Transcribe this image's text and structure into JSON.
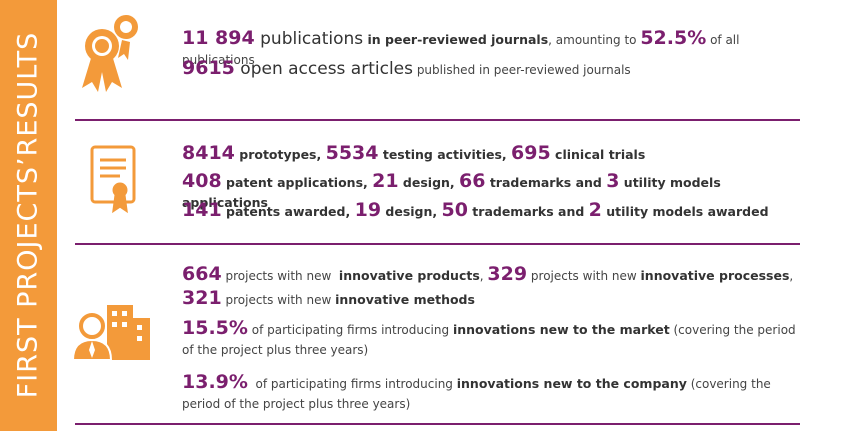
{
  "sidebar": {
    "title": "FIRST PROJECTS’RESULTS"
  },
  "sections": [
    {
      "lines": [
        [
          {
            "text": "11 894",
            "style": "number"
          },
          {
            "text": " publications",
            "style": "large"
          },
          {
            "text": " in peer-reviewed journals",
            "style": "bold"
          },
          {
            "text": ", amounting to ",
            "style": "plain"
          },
          {
            "text": "52.5%",
            "style": "number"
          },
          {
            "text": " of all publications",
            "style": "plain"
          }
        ],
        [
          {
            "text": "9615",
            "style": "number"
          },
          {
            "text": " open access articles",
            "style": "large"
          },
          {
            "text": " published in peer-reviewed journals",
            "style": "plain"
          }
        ]
      ]
    },
    {
      "lines": [
        [
          {
            "text": "8414",
            "style": "number"
          },
          {
            "text": " prototypes, ",
            "style": "bold"
          },
          {
            "text": "5534",
            "style": "number"
          },
          {
            "text": " testing activities, ",
            "style": "bold"
          },
          {
            "text": "695",
            "style": "number"
          },
          {
            "text": " clinical trials",
            "style": "bold"
          }
        ],
        [
          {
            "text": "408",
            "style": "number"
          },
          {
            "text": " patent applications, ",
            "style": "bold"
          },
          {
            "text": "21",
            "style": "number"
          },
          {
            "text": " design, ",
            "style": "bold"
          },
          {
            "text": "66",
            "style": "number"
          },
          {
            "text": " trademarks and ",
            "style": "bold"
          },
          {
            "text": "3",
            "style": "number"
          },
          {
            "text": " utility models applications",
            "style": "bold"
          }
        ],
        [
          {
            "text": "141",
            "style": "number"
          },
          {
            "text": " patents awarded, ",
            "style": "bold"
          },
          {
            "text": "19",
            "style": "number"
          },
          {
            "text": " design, ",
            "style": "bold"
          },
          {
            "text": "50",
            "style": "number"
          },
          {
            "text": " trademarks and ",
            "style": "bold"
          },
          {
            "text": "2",
            "style": "number"
          },
          {
            "text": " utility models awarded",
            "style": "bold"
          }
        ]
      ]
    },
    {
      "lines": [
        [
          {
            "text": "664",
            "style": "number"
          },
          {
            "text": " projects with new  ",
            "style": "plain"
          },
          {
            "text": "innovative products",
            "style": "bold"
          },
          {
            "text": ", ",
            "style": "plain"
          },
          {
            "text": "329",
            "style": "number"
          },
          {
            "text": " projects with new ",
            "style": "plain"
          },
          {
            "text": "innovative processes",
            "style": "bold"
          },
          {
            "text": ",",
            "style": "plain"
          }
        ],
        [
          {
            "text": "321",
            "style": "number"
          },
          {
            "text": " projects with new ",
            "style": "plain"
          },
          {
            "text": "innovative methods",
            "style": "bold"
          }
        ],
        [
          {
            "text": "15.5%",
            "style": "number"
          },
          {
            "text": " of participating firms introducing ",
            "style": "plain"
          },
          {
            "text": "innovations new to the market",
            "style": "bold"
          },
          {
            "text": " (covering the period of the project plus three years)",
            "style": "plain"
          }
        ],
        [
          {
            "text": "13.9%",
            "style": "number"
          },
          {
            "text": "  of participating firms introducing ",
            "style": "plain"
          },
          {
            "text": "innovations new to the company",
            "style": "bold"
          },
          {
            "text": " (covering the period of the project plus three years)",
            "style": "plain"
          }
        ]
      ]
    }
  ]
}
